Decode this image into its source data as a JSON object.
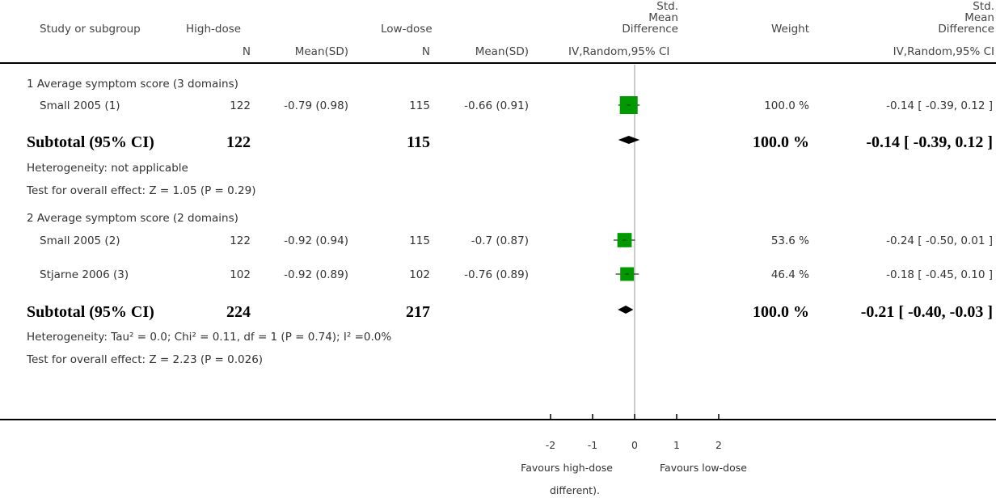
{
  "headers": {
    "study": "Study or subgroup",
    "high_dose": "High-dose",
    "low_dose": "Low-dose",
    "n": "N",
    "mean_sd": "Mean(SD)",
    "smd_line1": "Std.",
    "smd_line2": "Mean",
    "smd_line3": "Difference",
    "smd_method": "IV,Random,95% CI",
    "weight": "Weight"
  },
  "groups": [
    {
      "title": "1 Average symptom score (3 domains)",
      "studies": [
        {
          "name": "Small 2005 (1)",
          "n1": "122",
          "msd1": "-0.79 (0.98)",
          "n2": "115",
          "msd2": "-0.66 (0.91)",
          "weight": "100.0 %",
          "ci": "-0.14 [ -0.39, 0.12 ]"
        }
      ],
      "subtotal": {
        "label": "Subtotal (95% CI)",
        "n1": "122",
        "n2": "115",
        "weight": "100.0 %",
        "ci": "-0.14 [ -0.39, 0.12 ]"
      },
      "heterogeneity": "Heterogeneity: not applicable",
      "overall": "Test for overall effect: Z = 1.05 (P = 0.29)"
    },
    {
      "title": "2 Average symptom score (2 domains)",
      "studies": [
        {
          "name": "Small 2005 (2)",
          "n1": "122",
          "msd1": "-0.92 (0.94)",
          "n2": "115",
          "msd2": "-0.7 (0.87)",
          "weight": "53.6 %",
          "ci": "-0.24 [ -0.50, 0.01 ]"
        },
        {
          "name": "Stjarne 2006 (3)",
          "n1": "102",
          "msd1": "-0.92 (0.89)",
          "n2": "102",
          "msd2": "-0.76 (0.89)",
          "weight": "46.4 %",
          "ci": "-0.18 [ -0.45, 0.10 ]"
        }
      ],
      "subtotal": {
        "label": "Subtotal (95% CI)",
        "n1": "224",
        "n2": "217",
        "weight": "100.0 %",
        "ci": "-0.21 [ -0.40, -0.03 ]"
      },
      "heterogeneity": "Heterogeneity: Tau² = 0.0; Chi² = 0.11, df = 1 (P = 0.74); I² =0.0%",
      "overall": "Test for overall effect: Z = 2.23 (P = 0.026)"
    }
  ],
  "axis": {
    "favours_left": "Favours high-dose",
    "favours_right": "Favours low-dose",
    "footnote": "different)."
  },
  "colors": {
    "marker": "#009900",
    "line": "#000000",
    "zero_line": "#999999"
  },
  "chart_data": {
    "type": "forest",
    "xlim": [
      -2,
      2
    ],
    "ticks": [
      -2,
      -1,
      0,
      1,
      2
    ],
    "tick_labels": [
      "-2",
      "-1",
      "0",
      "1",
      "2"
    ],
    "studies": [
      {
        "name": "Small 2005 (1)",
        "est": -0.14,
        "lo": -0.39,
        "hi": 0.12,
        "weight": 100.0
      },
      {
        "name": "Small 2005 (2)",
        "est": -0.24,
        "lo": -0.5,
        "hi": 0.01,
        "weight": 53.6
      },
      {
        "name": "Stjarne 2006 (3)",
        "est": -0.18,
        "lo": -0.45,
        "hi": 0.1,
        "weight": 46.4
      }
    ],
    "subtotals": [
      {
        "est": -0.14,
        "lo": -0.39,
        "hi": 0.12
      },
      {
        "est": -0.21,
        "lo": -0.4,
        "hi": -0.03
      }
    ]
  }
}
